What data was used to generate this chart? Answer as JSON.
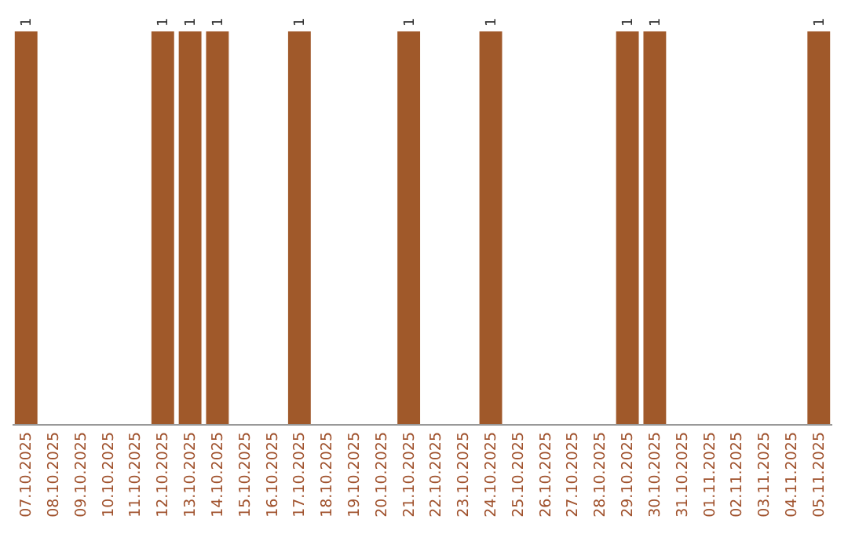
{
  "chart_data": {
    "type": "bar",
    "color": "#a0592a",
    "categories": [
      "07.10.2025",
      "08.10.2025",
      "09.10.2025",
      "10.10.2025",
      "11.10.2025",
      "12.10.2025",
      "13.10.2025",
      "14.10.2025",
      "15.10.2025",
      "16.10.2025",
      "17.10.2025",
      "18.10.2025",
      "19.10.2025",
      "20.10.2025",
      "21.10.2025",
      "22.10.2025",
      "23.10.2025",
      "24.10.2025",
      "25.10.2025",
      "26.10.2025",
      "27.10.2025",
      "28.10.2025",
      "29.10.2025",
      "30.10.2025",
      "31.10.2025",
      "01.11.2025",
      "02.11.2025",
      "03.11.2025",
      "04.11.2025",
      "05.11.2025"
    ],
    "values": [
      1,
      0,
      0,
      0,
      0,
      1,
      1,
      1,
      0,
      0,
      1,
      0,
      0,
      0,
      1,
      0,
      0,
      1,
      0,
      0,
      0,
      0,
      1,
      1,
      0,
      0,
      0,
      0,
      0,
      1
    ],
    "value_labels": [
      "1",
      null,
      null,
      null,
      null,
      "1",
      "1",
      "1",
      null,
      null,
      "1",
      null,
      null,
      null,
      "1",
      null,
      null,
      "1",
      null,
      null,
      null,
      null,
      "1",
      "1",
      null,
      null,
      null,
      null,
      null,
      "1"
    ],
    "data_labels": false
  }
}
